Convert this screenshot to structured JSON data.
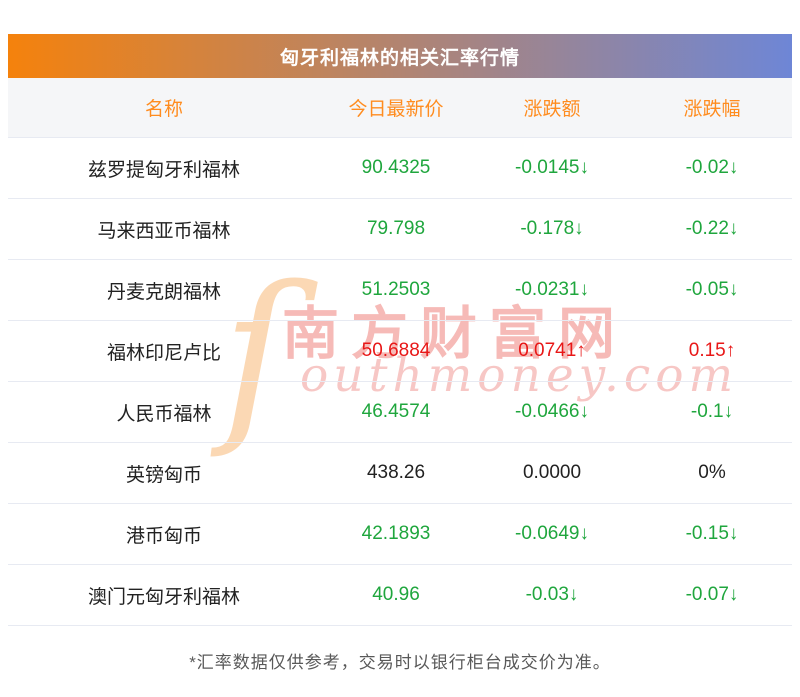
{
  "title": "匈牙利福林的相关汇率行情",
  "table": {
    "headers": [
      "名称",
      "今日最新价",
      "涨跌额",
      "涨跌幅"
    ],
    "rows": [
      {
        "name": "兹罗提匈牙利福林",
        "price": "90.4325",
        "change": "-0.0145↓",
        "pct": "-0.02↓",
        "trend": "down"
      },
      {
        "name": "马来西亚币福林",
        "price": "79.798",
        "change": "-0.178↓",
        "pct": "-0.22↓",
        "trend": "down"
      },
      {
        "name": "丹麦克朗福林",
        "price": "51.2503",
        "change": "-0.0231↓",
        "pct": "-0.05↓",
        "trend": "down"
      },
      {
        "name": "福林印尼卢比",
        "price": "50.6884",
        "change": "0.0741↑",
        "pct": "0.15↑",
        "trend": "up"
      },
      {
        "name": "人民币福林",
        "price": "46.4574",
        "change": "-0.0466↓",
        "pct": "-0.1↓",
        "trend": "down"
      },
      {
        "name": "英镑匈币",
        "price": "438.26",
        "change": "0.0000",
        "pct": "0%",
        "trend": "flat"
      },
      {
        "name": "港币匈币",
        "price": "42.1893",
        "change": "-0.0649↓",
        "pct": "-0.15↓",
        "trend": "down"
      },
      {
        "name": "澳门元匈牙利福林",
        "price": "40.96",
        "change": "-0.03↓",
        "pct": "-0.07↓",
        "trend": "down"
      }
    ]
  },
  "footer_note": "*汇率数据仅供参考，交易时以银行柜台成交价为准。",
  "watermark": {
    "flame_glyph": "ſ",
    "cn": "南方财富网",
    "en": "outhmoney.com"
  },
  "colors": {
    "up": "#e81717",
    "down": "#1fa63d",
    "flat": "#222222",
    "header_text": "#ff8c1f",
    "title_gradient_left": "#f5820c",
    "title_gradient_right": "#6e86d6"
  }
}
